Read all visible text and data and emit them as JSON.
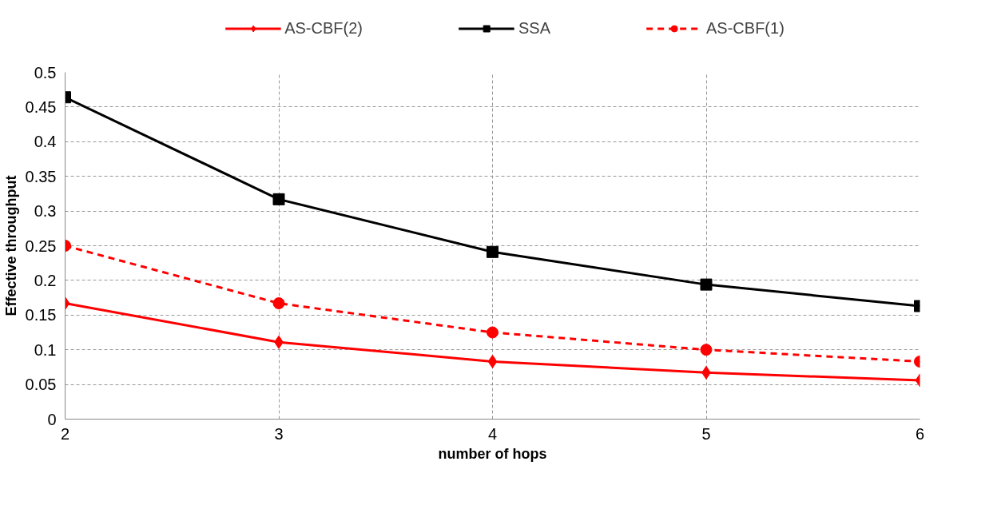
{
  "chart_data": {
    "type": "line",
    "xlabel": "number of hops",
    "ylabel": "Effective throughput",
    "x": [
      2,
      3,
      4,
      5,
      6
    ],
    "series": [
      {
        "name": "AS-CBF(2)",
        "color": "#ff0000",
        "marker": "diamond",
        "line_style": "solid",
        "values": [
          0.167,
          0.111,
          0.083,
          0.067,
          0.056
        ]
      },
      {
        "name": "SSA",
        "color": "#000000",
        "marker": "square",
        "line_style": "solid",
        "values": [
          0.464,
          0.317,
          0.241,
          0.194,
          0.163
        ]
      },
      {
        "name": "AS-CBF(1)",
        "color": "#ff0000",
        "marker": "circle",
        "line_style": "dashed",
        "values": [
          0.25,
          0.167,
          0.125,
          0.1,
          0.083
        ]
      }
    ],
    "xlim": [
      2,
      6
    ],
    "xticks": [
      2,
      3,
      4,
      5,
      6
    ],
    "ylim": [
      0,
      0.5
    ],
    "yticks": [
      0,
      {
        "value": 0.05,
        "label": "0.05"
      },
      {
        "value": 0.1,
        "label": "0.1"
      },
      {
        "value": 0.15,
        "label": "0.15"
      },
      {
        "value": 0.2,
        "label": "0.2"
      },
      {
        "value": 0.25,
        "label": "0.25"
      },
      {
        "value": 0.3,
        "label": "0.3"
      },
      {
        "value": 0.35,
        "label": "0.35"
      },
      {
        "value": 0.4,
        "label": "0.4"
      },
      {
        "value": 0.45,
        "label": "0.45"
      },
      {
        "value": 0.5,
        "label": "0.5"
      }
    ],
    "grid": true,
    "legend": "top"
  }
}
